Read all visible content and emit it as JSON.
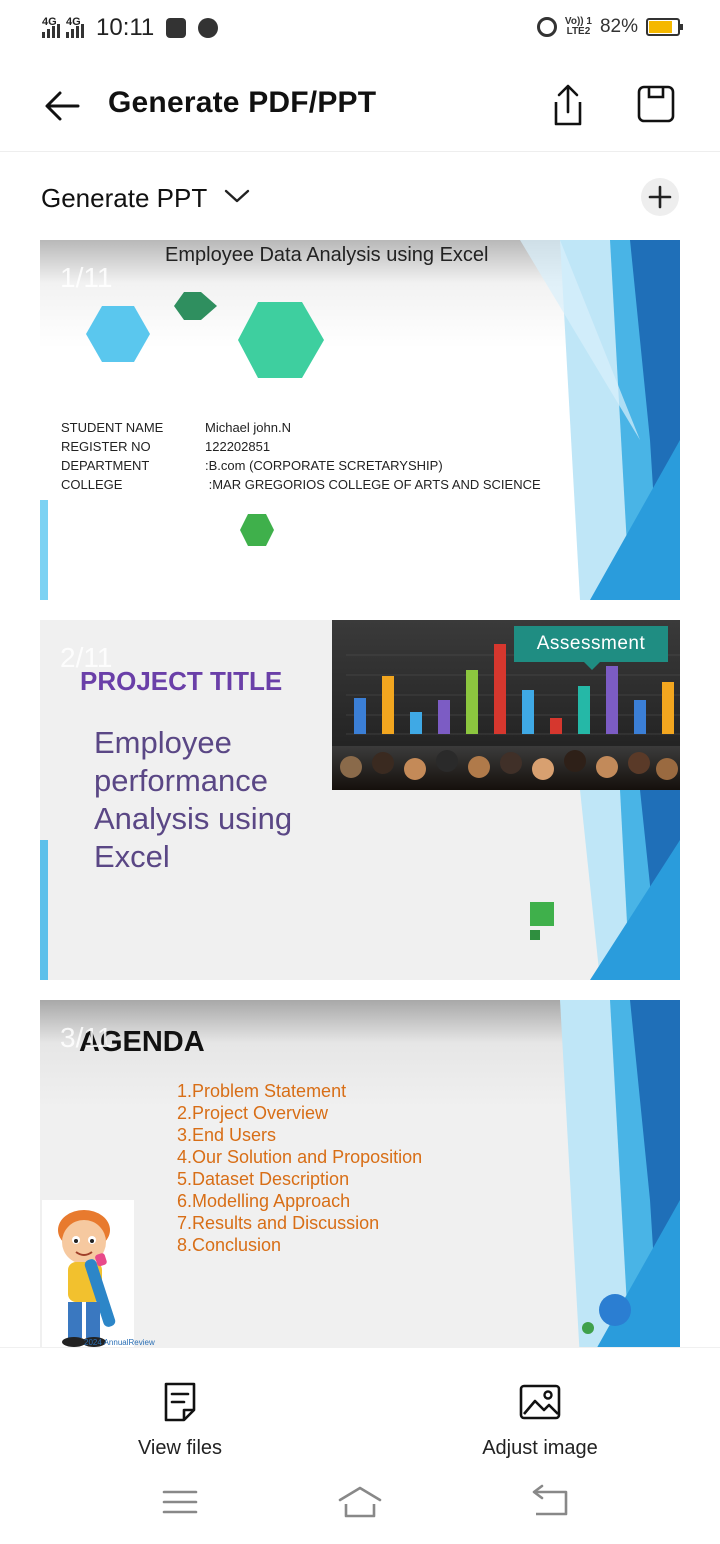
{
  "status_bar": {
    "network1": "4G",
    "network2": "4G",
    "time": "10:11",
    "volte": "Vo)) 1",
    "lte": "LTE2",
    "battery": "82%"
  },
  "app_bar": {
    "title": "Generate PDF/PPT"
  },
  "section": {
    "title": "Generate PPT"
  },
  "slides": [
    {
      "number": "1/11",
      "title": "Employee Data Analysis using Excel",
      "info": [
        {
          "key": "STUDENT NAME",
          "value": "Michael john.N"
        },
        {
          "key": "REGISTER NO",
          "value": "122202851"
        },
        {
          "key": "DEPARTMENT",
          "value": ":B.com (CORPORATE SCRETARYSHIP)"
        },
        {
          "key": "COLLEGE",
          "value": " :MAR GREGORIOS COLLEGE OF ARTS AND SCIENCE"
        }
      ]
    },
    {
      "number": "2/11",
      "title": "PROJECT TITLE",
      "body": "Employee performance Analysis using Excel",
      "image_label": "Assessment"
    },
    {
      "number": "3/11",
      "title": "AGENDA",
      "items": [
        "1.Problem Statement",
        "2.Project Overview",
        "3.End Users",
        "4.Our Solution and Proposition",
        "5.Dataset Description",
        "6.Modelling Approach",
        "7.Results and Discussion",
        "8.Conclusion"
      ],
      "footnote": "2024 AnnualReview"
    }
  ],
  "bottom_bar": {
    "view_files": "View files",
    "adjust_image": "Adjust image"
  },
  "colors": {
    "accent_blue": "#1e88d6",
    "purple_title": "#6a3fa8",
    "agenda_orange": "#d86e16"
  }
}
